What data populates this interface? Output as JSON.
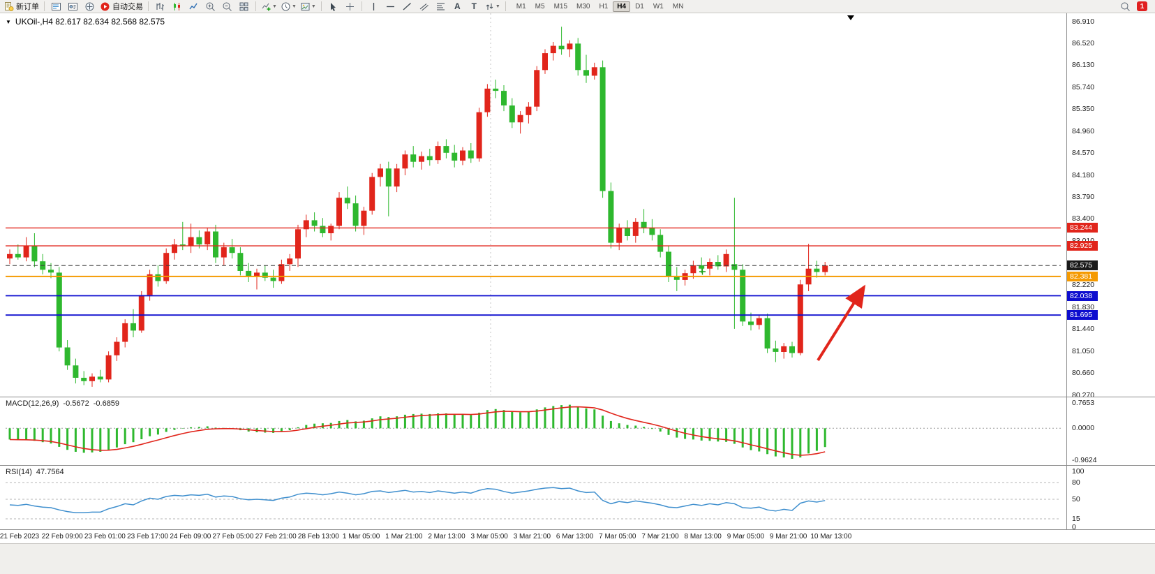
{
  "toolbar": {
    "new_order_label": "新订单",
    "autotrade_label": "自动交易",
    "text_tool": "A",
    "label_tool": "T",
    "timeframes": [
      "M1",
      "M5",
      "M15",
      "M30",
      "H1",
      "H4",
      "D1",
      "W1",
      "MN"
    ],
    "active_timeframe": "H4",
    "notification_count": "1"
  },
  "chart": {
    "title": "UKOil-,H4 82.617 82.634 82.568 82.575",
    "symbol": "UKOil-",
    "period": "H4",
    "open": "82.617",
    "high": "82.634",
    "low": "82.568",
    "close": "82.575",
    "price_max": 86.91,
    "price_min": 80.27,
    "price_axis": [
      "86.910",
      "86.520",
      "86.130",
      "85.740",
      "85.350",
      "84.960",
      "84.570",
      "84.180",
      "83.790",
      "83.400",
      "83.010",
      "82.610",
      "82.220",
      "81.830",
      "81.440",
      "81.050",
      "80.660",
      "80.270"
    ],
    "colors": {
      "bull": "#e1251b",
      "bear": "#2eb82e"
    },
    "hlines": [
      {
        "label": "83.244",
        "price": 83.244,
        "color": "#e1251b",
        "width": 1.4,
        "style": "solid"
      },
      {
        "label": "82.925",
        "price": 82.925,
        "color": "#e1251b",
        "width": 1.4,
        "style": "solid"
      },
      {
        "label": "82.575",
        "price": 82.575,
        "color": "#3c3c3c",
        "width": 1,
        "style": "dashed",
        "box": "#1a1a1a"
      },
      {
        "label": "82.381",
        "price": 82.381,
        "color": "#f59a00",
        "width": 2,
        "style": "solid"
      },
      {
        "label": "82.038",
        "price": 82.038,
        "color": "#0d0dcf",
        "width": 1.8,
        "style": "solid"
      },
      {
        "label": "81.695",
        "price": 81.695,
        "color": "#0d0dcf",
        "width": 1.8,
        "style": "solid"
      }
    ],
    "candles": [
      [
        82.7,
        82.86,
        82.6,
        82.78
      ],
      [
        82.78,
        82.95,
        82.68,
        82.72
      ],
      [
        82.72,
        83.08,
        82.65,
        82.92
      ],
      [
        82.92,
        83.15,
        82.55,
        82.65
      ],
      [
        82.65,
        82.78,
        82.42,
        82.5
      ],
      [
        82.5,
        82.62,
        82.35,
        82.45
      ],
      [
        82.45,
        82.55,
        81.05,
        81.12
      ],
      [
        81.12,
        81.25,
        80.72,
        80.8
      ],
      [
        80.8,
        80.92,
        80.48,
        80.58
      ],
      [
        80.58,
        80.7,
        80.45,
        80.52
      ],
      [
        80.52,
        80.66,
        80.42,
        80.6
      ],
      [
        80.6,
        80.72,
        80.5,
        80.55
      ],
      [
        80.55,
        81.05,
        80.5,
        80.98
      ],
      [
        80.98,
        81.3,
        80.88,
        81.22
      ],
      [
        81.22,
        81.62,
        81.12,
        81.55
      ],
      [
        81.55,
        81.8,
        81.3,
        81.42
      ],
      [
        81.42,
        82.12,
        81.38,
        82.05
      ],
      [
        82.05,
        82.5,
        81.95,
        82.42
      ],
      [
        82.42,
        82.58,
        82.2,
        82.3
      ],
      [
        82.3,
        82.88,
        82.25,
        82.8
      ],
      [
        82.8,
        83.05,
        82.68,
        82.95
      ],
      [
        82.95,
        83.35,
        82.85,
        82.92
      ],
      [
        82.92,
        83.32,
        82.8,
        83.08
      ],
      [
        83.08,
        83.2,
        82.88,
        82.95
      ],
      [
        82.95,
        83.25,
        82.85,
        83.18
      ],
      [
        83.18,
        83.3,
        82.62,
        82.72
      ],
      [
        82.72,
        82.98,
        82.58,
        82.9
      ],
      [
        82.9,
        83.05,
        82.7,
        82.8
      ],
      [
        82.8,
        82.9,
        82.4,
        82.48
      ],
      [
        82.48,
        82.62,
        82.28,
        82.38
      ],
      [
        82.38,
        82.52,
        82.15,
        82.45
      ],
      [
        82.45,
        82.58,
        82.3,
        82.36
      ],
      [
        82.36,
        82.5,
        82.18,
        82.3
      ],
      [
        82.3,
        82.68,
        82.25,
        82.6
      ],
      [
        82.6,
        82.78,
        82.48,
        82.7
      ],
      [
        82.7,
        83.3,
        82.55,
        83.22
      ],
      [
        83.22,
        83.48,
        83.08,
        83.38
      ],
      [
        83.38,
        83.52,
        83.18,
        83.28
      ],
      [
        83.28,
        83.42,
        83.08,
        83.15
      ],
      [
        83.15,
        83.32,
        83.02,
        83.28
      ],
      [
        83.28,
        83.88,
        83.22,
        83.78
      ],
      [
        83.78,
        83.98,
        83.58,
        83.68
      ],
      [
        83.68,
        83.82,
        83.18,
        83.28
      ],
      [
        83.28,
        83.62,
        83.12,
        83.55
      ],
      [
        83.55,
        84.22,
        83.48,
        84.15
      ],
      [
        84.15,
        84.38,
        83.98,
        84.3
      ],
      [
        84.3,
        84.42,
        83.45,
        83.98
      ],
      [
        83.98,
        84.38,
        83.88,
        84.3
      ],
      [
        84.3,
        84.62,
        84.18,
        84.55
      ],
      [
        84.55,
        84.7,
        84.32,
        84.42
      ],
      [
        84.42,
        84.6,
        84.28,
        84.52
      ],
      [
        84.52,
        84.65,
        84.35,
        84.45
      ],
      [
        84.45,
        84.78,
        84.38,
        84.7
      ],
      [
        84.7,
        84.82,
        84.48,
        84.58
      ],
      [
        84.58,
        84.72,
        84.32,
        84.44
      ],
      [
        84.44,
        84.68,
        84.36,
        84.62
      ],
      [
        84.62,
        84.75,
        84.4,
        84.48
      ],
      [
        84.48,
        85.38,
        84.42,
        85.3
      ],
      [
        85.3,
        85.8,
        85.22,
        85.72
      ],
      [
        85.72,
        85.88,
        85.55,
        85.68
      ],
      [
        85.68,
        85.78,
        85.32,
        85.42
      ],
      [
        85.42,
        85.55,
        85.02,
        85.12
      ],
      [
        85.12,
        85.32,
        84.92,
        85.25
      ],
      [
        85.25,
        85.48,
        85.1,
        85.4
      ],
      [
        85.4,
        86.12,
        85.32,
        86.05
      ],
      [
        86.05,
        86.42,
        85.98,
        86.35
      ],
      [
        86.35,
        86.55,
        86.22,
        86.48
      ],
      [
        86.48,
        86.82,
        86.32,
        86.42
      ],
      [
        86.42,
        86.58,
        86.28,
        86.52
      ],
      [
        86.52,
        86.62,
        85.95,
        86.05
      ],
      [
        86.05,
        86.32,
        85.82,
        85.95
      ],
      [
        85.95,
        86.18,
        85.88,
        86.1
      ],
      [
        86.1,
        86.22,
        83.78,
        83.9
      ],
      [
        83.9,
        84.05,
        82.88,
        82.98
      ],
      [
        82.98,
        83.32,
        82.85,
        83.25
      ],
      [
        83.25,
        83.38,
        83.02,
        83.1
      ],
      [
        83.1,
        83.42,
        82.98,
        83.35
      ],
      [
        83.35,
        83.58,
        83.15,
        83.25
      ],
      [
        83.25,
        83.4,
        83.02,
        83.12
      ],
      [
        83.12,
        83.22,
        82.72,
        82.82
      ],
      [
        82.82,
        82.92,
        82.28,
        82.38
      ],
      [
        82.38,
        82.55,
        82.12,
        82.32
      ],
      [
        82.32,
        82.5,
        82.22,
        82.44
      ],
      [
        82.44,
        82.66,
        82.34,
        82.58
      ],
      [
        82.58,
        82.72,
        82.44,
        82.52
      ],
      [
        82.52,
        82.7,
        82.4,
        82.64
      ],
      [
        82.64,
        82.76,
        82.5,
        82.56
      ],
      [
        82.56,
        82.86,
        82.46,
        82.78
      ],
      [
        82.6,
        83.78,
        81.45,
        82.5
      ],
      [
        82.5,
        82.6,
        81.5,
        81.58
      ],
      [
        81.58,
        81.74,
        81.42,
        81.52
      ],
      [
        81.52,
        81.7,
        81.44,
        81.64
      ],
      [
        81.64,
        81.72,
        81.02,
        81.1
      ],
      [
        81.1,
        81.24,
        80.86,
        81.04
      ],
      [
        81.04,
        81.2,
        80.92,
        81.14
      ],
      [
        81.14,
        81.22,
        80.94,
        81.02
      ],
      [
        81.02,
        82.32,
        80.98,
        82.24
      ],
      [
        82.24,
        82.96,
        82.12,
        82.52
      ],
      [
        82.52,
        82.66,
        82.36,
        82.46
      ],
      [
        82.46,
        82.64,
        82.4,
        82.575
      ]
    ],
    "time_axis": [
      "21 Feb 2023",
      "22 Feb 09:00",
      "23 Feb 01:00",
      "23 Feb 17:00",
      "24 Feb 09:00",
      "27 Feb 05:00",
      "27 Feb 21:00",
      "28 Feb 13:00",
      "1 Mar 05:00",
      "1 Mar 21:00",
      "2 Mar 13:00",
      "3 Mar 05:00",
      "3 Mar 21:00",
      "6 Mar 13:00",
      "7 Mar 05:00",
      "7 Mar 21:00",
      "8 Mar 13:00",
      "9 Mar 05:00",
      "9 Mar 21:00",
      "10 Mar 13:00"
    ],
    "arrow": {
      "color": "#e1251b"
    }
  },
  "macd": {
    "name": "MACD(12,26,9)",
    "value_main": "-0.5672",
    "value_signal": "-0.6859",
    "scale_max": "0.7653",
    "scale_zero": "0.0000",
    "scale_min": "-0.9624",
    "max": 0.7653,
    "min": -0.9624,
    "histogram_color": "#2eb82e",
    "signal_color": "#e1251b",
    "histogram": [
      -0.34,
      -0.36,
      -0.35,
      -0.38,
      -0.42,
      -0.46,
      -0.56,
      -0.65,
      -0.71,
      -0.74,
      -0.73,
      -0.71,
      -0.66,
      -0.58,
      -0.48,
      -0.42,
      -0.33,
      -0.24,
      -0.19,
      -0.11,
      -0.05,
      -0.01,
      0.03,
      0.04,
      0.06,
      0.02,
      0.01,
      -0.01,
      -0.06,
      -0.1,
      -0.12,
      -0.13,
      -0.14,
      -0.1,
      -0.06,
      0.03,
      0.1,
      0.14,
      0.15,
      0.16,
      0.22,
      0.25,
      0.21,
      0.23,
      0.3,
      0.36,
      0.34,
      0.36,
      0.41,
      0.43,
      0.44,
      0.43,
      0.45,
      0.45,
      0.42,
      0.42,
      0.4,
      0.47,
      0.55,
      0.58,
      0.55,
      0.5,
      0.48,
      0.5,
      0.57,
      0.63,
      0.67,
      0.7,
      0.71,
      0.66,
      0.6,
      0.57,
      0.38,
      0.22,
      0.15,
      0.1,
      0.08,
      0.04,
      -0.02,
      -0.1,
      -0.2,
      -0.28,
      -0.32,
      -0.34,
      -0.37,
      -0.38,
      -0.4,
      -0.41,
      -0.47,
      -0.58,
      -0.66,
      -0.7,
      -0.78,
      -0.85,
      -0.88,
      -0.92,
      -0.88,
      -0.76,
      -0.68,
      -0.5672
    ]
  },
  "rsi": {
    "name": "RSI(14)",
    "value": "47.7564",
    "scale": [
      "100",
      "80",
      "50",
      "15",
      "0"
    ],
    "levels": [
      80,
      50,
      15
    ],
    "line_color": "#3f8fce",
    "values": [
      40,
      39,
      41,
      38,
      36,
      35,
      31,
      28,
      26,
      26,
      27,
      27,
      33,
      37,
      42,
      40,
      47,
      52,
      50,
      55,
      57,
      56,
      58,
      57,
      59,
      54,
      56,
      55,
      51,
      49,
      50,
      49,
      48,
      52,
      54,
      59,
      61,
      60,
      58,
      60,
      63,
      61,
      58,
      60,
      64,
      65,
      62,
      64,
      66,
      63,
      64,
      62,
      65,
      63,
      61,
      63,
      61,
      66,
      69,
      68,
      64,
      61,
      63,
      65,
      68,
      70,
      71,
      69,
      70,
      65,
      62,
      63,
      48,
      42,
      46,
      44,
      47,
      45,
      43,
      40,
      36,
      35,
      38,
      41,
      39,
      42,
      40,
      44,
      42,
      35,
      34,
      36,
      31,
      29,
      32,
      30,
      43,
      47,
      45,
      47.7564
    ]
  }
}
